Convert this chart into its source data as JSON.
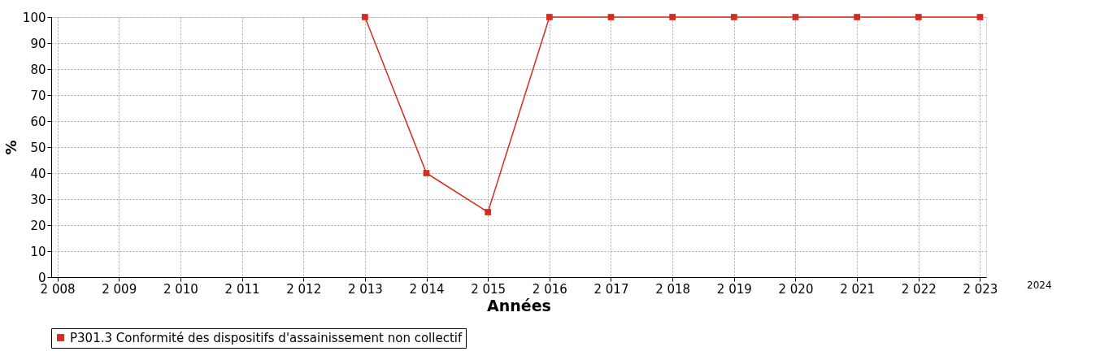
{
  "chart_data": {
    "type": "line",
    "xlabel": "Années",
    "ylabel": "%",
    "categories": [
      "2 008",
      "2 009",
      "2 010",
      "2 011",
      "2 012",
      "2 013",
      "2 014",
      "2 015",
      "2 016",
      "2 017",
      "2 018",
      "2 019",
      "2 020",
      "2 021",
      "2 022",
      "2 023"
    ],
    "series": [
      {
        "name": "P301.3 Conformité des dispositifs d'assainissement non collectif",
        "color": "#d62c1f",
        "values": [
          null,
          null,
          null,
          null,
          null,
          100,
          40,
          25,
          100,
          100,
          100,
          100,
          100,
          100,
          100,
          100
        ]
      }
    ],
    "ylim": [
      0,
      100
    ],
    "yticks": [
      0,
      10,
      20,
      30,
      40,
      50,
      60,
      70,
      80,
      90,
      100
    ],
    "grid": true,
    "legend": "bottom",
    "marker": "square",
    "line_style": "solid",
    "annotations": [
      "2024"
    ]
  }
}
